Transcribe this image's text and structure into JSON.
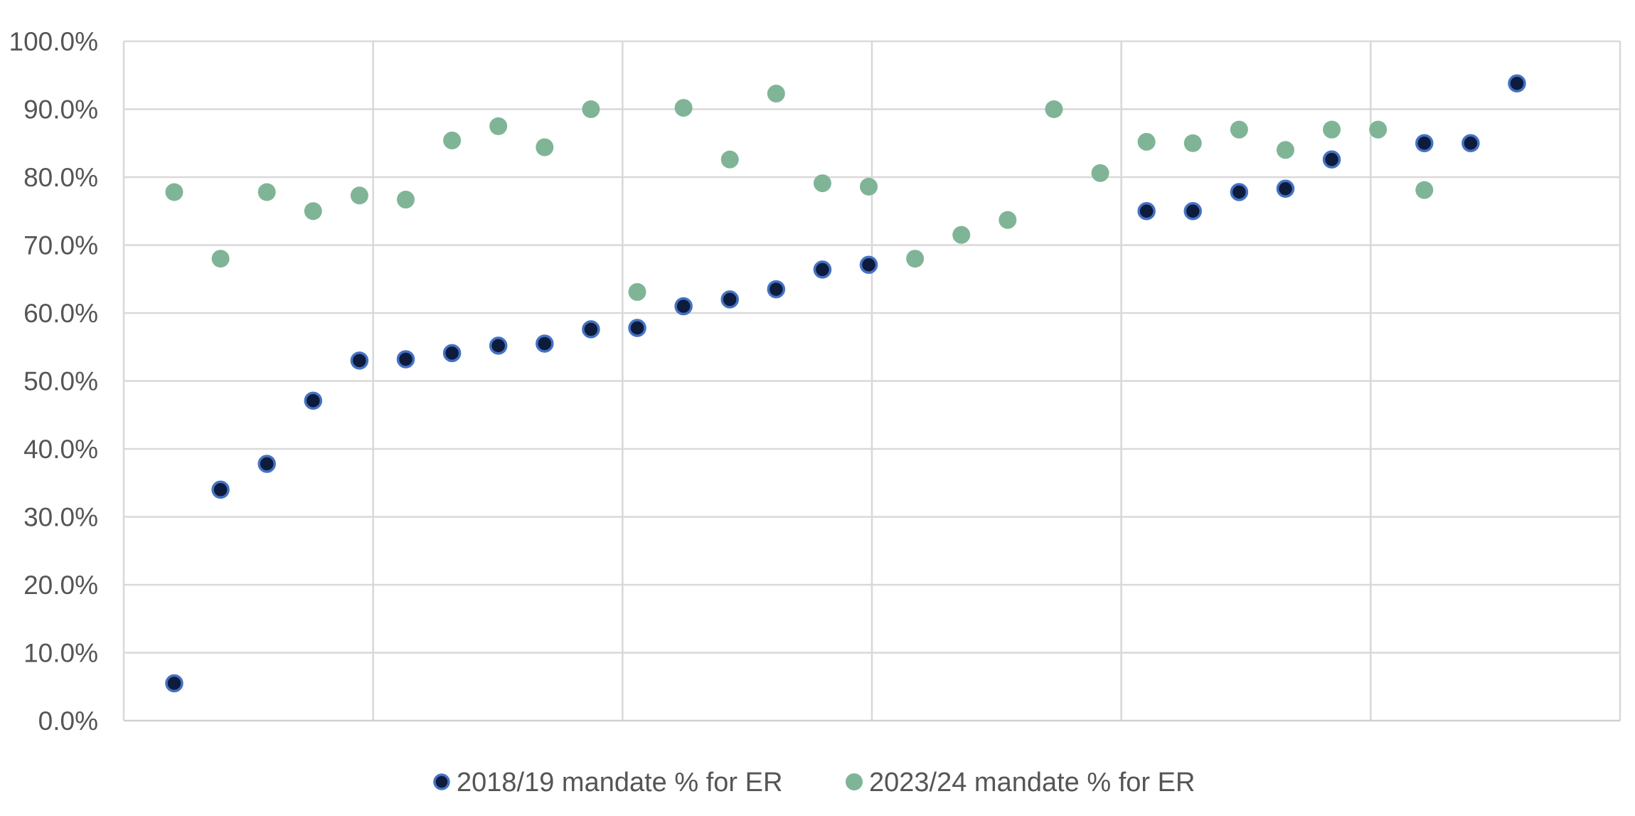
{
  "chart_data": {
    "type": "scatter",
    "title": "",
    "xlabel": "",
    "ylabel": "",
    "xlim": [
      0,
      30
    ],
    "ylim": [
      0,
      100
    ],
    "y_ticks": [
      "0.0%",
      "10.0%",
      "20.0%",
      "30.0%",
      "40.0%",
      "50.0%",
      "60.0%",
      "70.0%",
      "80.0%",
      "90.0%",
      "100.0%"
    ],
    "x_gridlines": [
      0,
      5,
      10,
      15,
      20,
      25,
      30
    ],
    "grid": true,
    "legend": "bottom",
    "series": [
      {
        "name": "2018/19 mandate % for ER",
        "color": "#0d1b3d",
        "edge_color": "#4472c4",
        "points": [
          {
            "x": 1,
            "y": 5.5
          },
          {
            "x": 2,
            "y": 34.0
          },
          {
            "x": 3,
            "y": 37.8
          },
          {
            "x": 4,
            "y": 47.1
          },
          {
            "x": 5,
            "y": 53.0
          },
          {
            "x": 6,
            "y": 53.2
          },
          {
            "x": 7,
            "y": 54.1
          },
          {
            "x": 8,
            "y": 55.2
          },
          {
            "x": 9,
            "y": 55.5
          },
          {
            "x": 10,
            "y": 57.6
          },
          {
            "x": 11,
            "y": 57.8
          },
          {
            "x": 12,
            "y": 61.0
          },
          {
            "x": 13,
            "y": 62.0
          },
          {
            "x": 14,
            "y": 63.5
          },
          {
            "x": 15,
            "y": 66.4
          },
          {
            "x": 16,
            "y": 67.1
          },
          {
            "x": 22,
            "y": 75.0
          },
          {
            "x": 23,
            "y": 75.0
          },
          {
            "x": 24,
            "y": 77.8
          },
          {
            "x": 25,
            "y": 78.3
          },
          {
            "x": 26,
            "y": 82.6
          },
          {
            "x": 28,
            "y": 85.0
          },
          {
            "x": 29,
            "y": 85.0
          },
          {
            "x": 30,
            "y": 93.8
          }
        ]
      },
      {
        "name": "2023/24 mandate % for ER",
        "color": "#7fb596",
        "edge_color": "#7fb596",
        "points": [
          {
            "x": 1,
            "y": 77.8
          },
          {
            "x": 2,
            "y": 68.0
          },
          {
            "x": 3,
            "y": 77.8
          },
          {
            "x": 4,
            "y": 75.0
          },
          {
            "x": 5,
            "y": 77.3
          },
          {
            "x": 6,
            "y": 76.7
          },
          {
            "x": 7,
            "y": 85.4
          },
          {
            "x": 8,
            "y": 87.5
          },
          {
            "x": 9,
            "y": 84.4
          },
          {
            "x": 10,
            "y": 90.0
          },
          {
            "x": 11,
            "y": 63.1
          },
          {
            "x": 12,
            "y": 90.2
          },
          {
            "x": 13,
            "y": 82.6
          },
          {
            "x": 14,
            "y": 92.3
          },
          {
            "x": 15,
            "y": 79.1
          },
          {
            "x": 16,
            "y": 78.6
          },
          {
            "x": 17,
            "y": 68.0
          },
          {
            "x": 18,
            "y": 71.5
          },
          {
            "x": 19,
            "y": 73.7
          },
          {
            "x": 20,
            "y": 90.0
          },
          {
            "x": 21,
            "y": 80.6
          },
          {
            "x": 22,
            "y": 85.2
          },
          {
            "x": 23,
            "y": 85.0
          },
          {
            "x": 24,
            "y": 87.0
          },
          {
            "x": 25,
            "y": 84.0
          },
          {
            "x": 26,
            "y": 87.0
          },
          {
            "x": 27,
            "y": 87.0
          },
          {
            "x": 28,
            "y": 78.1
          }
        ]
      }
    ]
  }
}
